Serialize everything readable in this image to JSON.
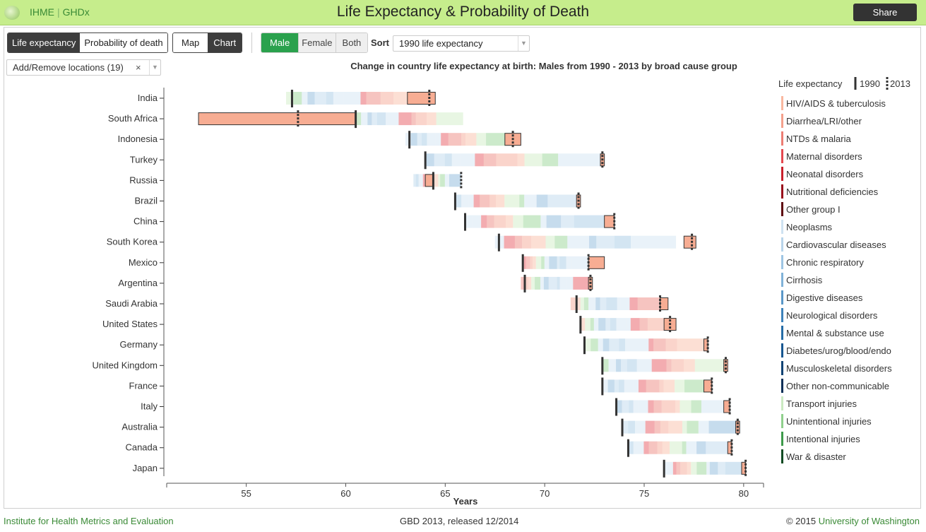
{
  "header": {
    "brand_left": "IHME",
    "brand_right": "GHDx",
    "title": "Life Expectancy & Probability of Death",
    "share_label": "Share"
  },
  "controls": {
    "metric_tabs": [
      "Life expectancy",
      "Probability of death"
    ],
    "view_tabs": [
      "Map",
      "Chart"
    ],
    "sex_tabs": [
      "Male",
      "Female",
      "Both"
    ],
    "sort_label": "Sort",
    "sort_value": "1990 life expectancy",
    "locations_label": "Add/Remove locations (19)",
    "clear_symbol": "×"
  },
  "footer": {
    "left": "Institute for Health Metrics and Evaluation",
    "middle": "GBD 2013, released 12/2014",
    "right_prefix": "© 2015 ",
    "right_link": "University of Washington"
  },
  "colors": {
    "marker": "#333333",
    "header_bg": "#c6ed8c",
    "brand_green": "#3a8a36",
    "active_green": "#2aa14d"
  },
  "chart_data": {
    "type": "bar",
    "title": "Change in country life expectancy at birth: Males from 1990 - 2013 by broad cause group",
    "xlabel": "Years",
    "xlim": [
      51,
      81
    ],
    "xticks": [
      55,
      60,
      65,
      70,
      75,
      80
    ],
    "legend": {
      "title": "Life expectancy",
      "marker_1990": "1990",
      "marker_2013": "2013",
      "position": "right"
    },
    "groups": [
      {
        "name": "HIV/AIDS & tuberculosis",
        "color": "#f9b79f"
      },
      {
        "name": "Diarrhea/LRI/other",
        "color": "#f4a08c"
      },
      {
        "name": "NTDs & malaria",
        "color": "#ec7d73"
      },
      {
        "name": "Maternal disorders",
        "color": "#e5484f"
      },
      {
        "name": "Neonatal disorders",
        "color": "#c9202b"
      },
      {
        "name": "Nutritional deficiencies",
        "color": "#9a0f1c"
      },
      {
        "name": "Other group I",
        "color": "#5e0710"
      },
      {
        "name": "Neoplasms",
        "color": "#cfe2f1"
      },
      {
        "name": "Cardiovascular diseases",
        "color": "#b8d4ea"
      },
      {
        "name": "Chronic respiratory",
        "color": "#9ec5e3"
      },
      {
        "name": "Cirrhosis",
        "color": "#80b2d8"
      },
      {
        "name": "Digestive diseases",
        "color": "#5a98c8"
      },
      {
        "name": "Neurological disorders",
        "color": "#3d82ba"
      },
      {
        "name": "Mental & substance use",
        "color": "#256ca6"
      },
      {
        "name": "Diabetes/urog/blood/endo",
        "color": "#155690"
      },
      {
        "name": "Musculoskeletal disorders",
        "color": "#0d4273"
      },
      {
        "name": "Other non-communicable",
        "color": "#082f57"
      },
      {
        "name": "Transport injuries",
        "color": "#cbeac2"
      },
      {
        "name": "Unintentional injuries",
        "color": "#8fd08c"
      },
      {
        "name": "Intentional injuries",
        "color": "#3d9a4a"
      },
      {
        "name": "War & disaster",
        "color": "#0e4a22"
      }
    ],
    "categories": [
      "India",
      "South Africa",
      "Indonesia",
      "Turkey",
      "Russia",
      "Brazil",
      "China",
      "South Korea",
      "Mexico",
      "Argentina",
      "Saudi Arabia",
      "United States",
      "Germany",
      "United Kingdom",
      "France",
      "Italy",
      "Australia",
      "Canada",
      "Japan"
    ],
    "le_1990": [
      57.3,
      60.5,
      63.2,
      64.0,
      64.4,
      65.5,
      66.0,
      67.7,
      68.9,
      69.0,
      71.6,
      71.8,
      72.0,
      72.9,
      72.9,
      73.6,
      73.9,
      74.2,
      76.0
    ],
    "le_2013": [
      64.2,
      57.6,
      68.4,
      72.9,
      65.8,
      71.7,
      73.5,
      77.4,
      72.2,
      72.3,
      75.8,
      76.3,
      78.2,
      79.1,
      78.4,
      79.3,
      79.7,
      79.4,
      80.1
    ],
    "gain_range": [
      [
        57.0,
        64.2
      ],
      [
        60.5,
        65.9
      ],
      [
        63.0,
        68.4
      ],
      [
        64.0,
        72.9
      ],
      [
        63.4,
        65.8
      ],
      [
        65.5,
        71.7
      ],
      [
        66.0,
        73.3
      ],
      [
        67.5,
        76.6
      ],
      [
        68.9,
        72.2
      ],
      [
        68.8,
        72.3
      ],
      [
        71.3,
        75.8
      ],
      [
        71.8,
        76.3
      ],
      [
        72.0,
        78.2
      ],
      [
        72.9,
        79.1
      ],
      [
        72.9,
        78.4
      ],
      [
        73.6,
        79.3
      ],
      [
        73.9,
        79.7
      ],
      [
        74.2,
        79.4
      ],
      [
        76.0,
        80.1
      ]
    ],
    "loss_range": [
      [
        63.1,
        64.5
      ],
      [
        52.6,
        60.5
      ],
      [
        68.0,
        68.8
      ],
      [
        72.8,
        73.0
      ],
      [
        64.0,
        64.4
      ],
      [
        71.6,
        71.8
      ],
      [
        73.0,
        73.5
      ],
      [
        77.0,
        77.6
      ],
      [
        72.2,
        73.0
      ],
      [
        72.2,
        72.4
      ],
      [
        75.8,
        76.2
      ],
      [
        76.0,
        76.6
      ],
      [
        78.0,
        78.2
      ],
      [
        79.0,
        79.2
      ],
      [
        78.0,
        78.4
      ],
      [
        79.0,
        79.3
      ],
      [
        79.6,
        79.8
      ],
      [
        79.2,
        79.4
      ],
      [
        79.9,
        80.1
      ]
    ]
  }
}
